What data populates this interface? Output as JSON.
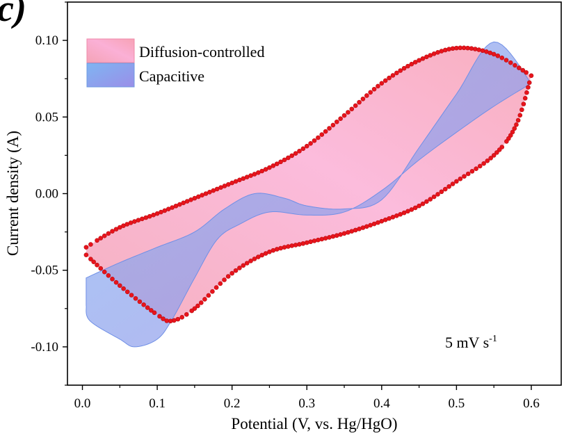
{
  "chart_data": {
    "type": "area",
    "panel_label": "c)",
    "xlabel": "Potential (V, vs. Hg/HgO)",
    "ylabel": "Current density (A)",
    "xlim": [
      -0.02,
      0.64
    ],
    "ylim": [
      -0.125,
      0.125
    ],
    "xticks": [
      0.0,
      0.1,
      0.2,
      0.3,
      0.4,
      0.5,
      0.6
    ],
    "xtick_labels": [
      "0.0",
      "0.1",
      "0.2",
      "0.3",
      "0.4",
      "0.5",
      "0.6"
    ],
    "yticks": [
      -0.1,
      -0.05,
      0.0,
      0.05,
      0.1
    ],
    "ytick_labels": [
      "-0.10",
      "-0.05",
      "0.00",
      "0.05",
      "0.10"
    ],
    "grid": false,
    "legend_position": "top-left",
    "annotation": {
      "main": "5 mV s",
      "superscript": "-1"
    },
    "series": [
      {
        "name": "Diffusion-controlled",
        "fill": "#f7a8c4",
        "marker_color": "#e8141c",
        "anodic": {
          "x": [
            0.005,
            0.05,
            0.1,
            0.15,
            0.2,
            0.25,
            0.3,
            0.35,
            0.4,
            0.45,
            0.5,
            0.55,
            0.6
          ],
          "y": [
            -0.035,
            -0.022,
            -0.013,
            -0.003,
            0.007,
            0.017,
            0.031,
            0.051,
            0.072,
            0.087,
            0.095,
            0.091,
            0.077
          ]
        },
        "cathodic": {
          "x": [
            0.6,
            0.58,
            0.55,
            0.5,
            0.45,
            0.4,
            0.35,
            0.3,
            0.25,
            0.2,
            0.15,
            0.12,
            0.1,
            0.05,
            0.005
          ],
          "y": [
            0.077,
            0.045,
            0.025,
            0.008,
            -0.008,
            -0.018,
            -0.026,
            -0.032,
            -0.038,
            -0.052,
            -0.075,
            -0.083,
            -0.079,
            -0.06,
            -0.04
          ]
        }
      },
      {
        "name": "Capacitive",
        "fill": "#8ab8f2",
        "upper": {
          "x": [
            0.005,
            0.05,
            0.1,
            0.15,
            0.19,
            0.23,
            0.27,
            0.3,
            0.35,
            0.4,
            0.45,
            0.5,
            0.55,
            0.6
          ],
          "y": [
            -0.055,
            -0.045,
            -0.035,
            -0.025,
            -0.01,
            0.0,
            -0.003,
            -0.008,
            -0.01,
            -0.004,
            0.03,
            0.065,
            0.099,
            0.072
          ]
        },
        "lower": {
          "x": [
            0.6,
            0.55,
            0.5,
            0.45,
            0.4,
            0.35,
            0.3,
            0.25,
            0.21,
            0.18,
            0.15,
            0.12,
            0.1,
            0.07,
            0.05,
            0.01,
            0.005
          ],
          "y": [
            0.072,
            0.057,
            0.04,
            0.022,
            0.002,
            -0.012,
            -0.014,
            -0.012,
            -0.02,
            -0.03,
            -0.055,
            -0.082,
            -0.095,
            -0.1,
            -0.095,
            -0.083,
            -0.073
          ]
        }
      }
    ]
  }
}
